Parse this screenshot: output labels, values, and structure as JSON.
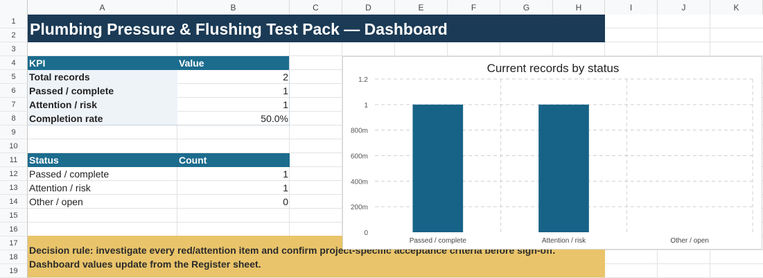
{
  "columns": [
    "A",
    "B",
    "C",
    "D",
    "E",
    "F",
    "G",
    "H",
    "I",
    "J",
    "K"
  ],
  "rows": [
    "1",
    "2",
    "3",
    "4",
    "5",
    "6",
    "7",
    "8",
    "9",
    "10",
    "11",
    "12",
    "13",
    "14",
    "15",
    "16",
    "17",
    "18",
    "19"
  ],
  "title": "Plumbing Pressure & Flushing Test Pack — Dashboard",
  "kpi_table": {
    "header_label": "KPI",
    "header_value": "Value",
    "rows": [
      {
        "label": "Total records",
        "value": "2"
      },
      {
        "label": "Passed / complete",
        "value": "1"
      },
      {
        "label": "Attention / risk",
        "value": "1"
      },
      {
        "label": "Completion rate",
        "value": "50.0%"
      }
    ]
  },
  "status_table": {
    "header_label": "Status",
    "header_value": "Count",
    "rows": [
      {
        "label": "Passed / complete",
        "value": "1"
      },
      {
        "label": "Attention / risk",
        "value": "1"
      },
      {
        "label": "Other / open",
        "value": "0"
      }
    ]
  },
  "decision": {
    "line1": "Decision rule: investigate every red/attention item and confirm project-specific acceptance criteria before sign-off.",
    "line2": "Dashboard values update from the Register sheet."
  },
  "colors": {
    "title_bg": "#1b3a55",
    "table_header_bg": "#1c6c8e",
    "bar": "#176387",
    "decision_bg": "#e9c46a"
  },
  "chart_data": {
    "type": "bar",
    "title": "Current records by status",
    "categories": [
      "Passed / complete",
      "Attention / risk",
      "Other / open"
    ],
    "values": [
      1,
      1,
      0
    ],
    "ylim": [
      0,
      1.2
    ],
    "yticks": [
      {
        "value": 0,
        "label": "0"
      },
      {
        "value": 0.2,
        "label": "200m"
      },
      {
        "value": 0.4,
        "label": "400m"
      },
      {
        "value": 0.6,
        "label": "600m"
      },
      {
        "value": 0.8,
        "label": "800m"
      },
      {
        "value": 1.0,
        "label": "1"
      },
      {
        "value": 1.2,
        "label": "1.2"
      }
    ],
    "grid": true,
    "legend": "none",
    "xlabel": "",
    "ylabel": ""
  }
}
